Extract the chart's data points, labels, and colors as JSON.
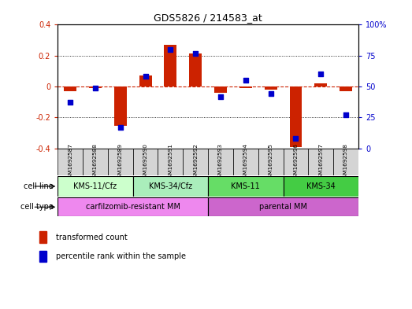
{
  "title": "GDS5826 / 214583_at",
  "samples": [
    "GSM1692587",
    "GSM1692588",
    "GSM1692589",
    "GSM1692590",
    "GSM1692591",
    "GSM1692592",
    "GSM1692593",
    "GSM1692594",
    "GSM1692595",
    "GSM1692596",
    "GSM1692597",
    "GSM1692598"
  ],
  "transformed_count": [
    -0.03,
    -0.01,
    -0.255,
    0.07,
    0.27,
    0.215,
    -0.04,
    -0.01,
    -0.02,
    -0.39,
    0.02,
    -0.03
  ],
  "percentile_rank": [
    37,
    49,
    17,
    58,
    80,
    77,
    42,
    55,
    44,
    8,
    60,
    27
  ],
  "ylim_left": [
    -0.4,
    0.4
  ],
  "ylim_right": [
    0,
    100
  ],
  "yticks_left": [
    -0.4,
    -0.2,
    0.0,
    0.2,
    0.4
  ],
  "yticks_right": [
    0,
    25,
    50,
    75,
    100
  ],
  "bar_color": "#cc2200",
  "dot_color": "#0000cc",
  "zero_line_color": "#cc2200",
  "grid_color": "#000000",
  "cell_line_groups": [
    {
      "label": "KMS-11/Cfz",
      "start": 0,
      "end": 3,
      "color": "#ccffcc"
    },
    {
      "label": "KMS-34/Cfz",
      "start": 3,
      "end": 6,
      "color": "#aaeebb"
    },
    {
      "label": "KMS-11",
      "start": 6,
      "end": 9,
      "color": "#66dd66"
    },
    {
      "label": "KMS-34",
      "start": 9,
      "end": 12,
      "color": "#44cc44"
    }
  ],
  "cell_type_groups": [
    {
      "label": "carfilzomib-resistant MM",
      "start": 0,
      "end": 6,
      "color": "#ee88ee"
    },
    {
      "label": "parental MM",
      "start": 6,
      "end": 12,
      "color": "#cc66cc"
    }
  ],
  "bg_color": "#ffffff",
  "plot_bg_color": "#ffffff",
  "bar_width": 0.5
}
